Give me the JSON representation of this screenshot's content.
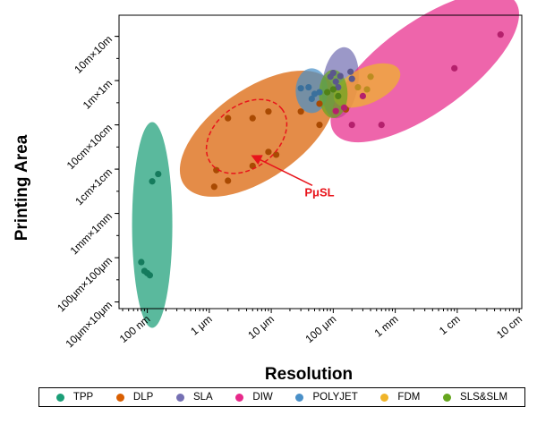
{
  "chart_data": {
    "type": "scatter",
    "title": "",
    "xlabel": "Resolution",
    "ylabel": "Printing Area",
    "x_scale": "log",
    "y_scale": "log",
    "x_unit": "m",
    "y_unit": "m^2",
    "xlim": [
      3.5e-08,
      0.11
    ],
    "ylim": [
      5e-11,
      900
    ],
    "x_ticks": [
      {
        "value": 1e-07,
        "label": "100 nm"
      },
      {
        "value": 1e-06,
        "label": "1 μm"
      },
      {
        "value": 1e-05,
        "label": "10 μm"
      },
      {
        "value": 0.0001,
        "label": "100 μm"
      },
      {
        "value": 0.001,
        "label": "1 mm"
      },
      {
        "value": 0.01,
        "label": "1 cm"
      },
      {
        "value": 0.1,
        "label": "10 cm"
      }
    ],
    "y_ticks": [
      {
        "value": 1e-10,
        "label": "10μm×10μm"
      },
      {
        "value": 1e-08,
        "label": "100μm×100μm"
      },
      {
        "value": 1e-06,
        "label": "1mm×1mm"
      },
      {
        "value": 0.0001,
        "label": "1cm×1cm"
      },
      {
        "value": 0.01,
        "label": "10cm×10cm"
      },
      {
        "value": 1,
        "label": "1m×1m"
      },
      {
        "value": 100,
        "label": "10m×10m"
      }
    ],
    "grid": false,
    "legend_position": "bottom",
    "series": [
      {
        "name": "TPP",
        "color": "#1b9e77",
        "points": [
          [
            8e-08,
            6.3e-09
          ],
          [
            9e-08,
            2.5e-09
          ],
          [
            1e-07,
            2e-09
          ],
          [
            1.1e-07,
            1.6e-09
          ],
          [
            1.2e-07,
            2.8e-05
          ],
          [
            1.5e-07,
            6e-05
          ]
        ],
        "region": {
          "cx": 1.2e-07,
          "cy": 3e-07,
          "w": 45,
          "h": 230,
          "rot": 0
        }
      },
      {
        "name": "DLP",
        "color": "#d95f02",
        "points": [
          [
            1.2e-06,
            1.6e-05
          ],
          [
            1.3e-06,
            9e-05
          ],
          [
            2e-06,
            3e-05
          ],
          [
            2e-06,
            0.02
          ],
          [
            5e-06,
            0.02
          ],
          [
            5e-06,
            0.00014
          ],
          [
            9e-06,
            0.04
          ],
          [
            9e-06,
            0.0006
          ],
          [
            1.2e-05,
            0.00045
          ],
          [
            3e-05,
            0.04
          ],
          [
            6e-05,
            0.09
          ],
          [
            6e-05,
            0.01
          ],
          [
            0.00016,
            0.05
          ]
        ],
        "region": {
          "cx": 6e-06,
          "cy": 0.004,
          "w": 200,
          "h": 100,
          "rot": -35
        }
      },
      {
        "name": "SLA",
        "color": "#7570b3",
        "points": [
          [
            9e-05,
            1.5
          ],
          [
            0.0001,
            2.2
          ],
          [
            0.00011,
            0.9
          ],
          [
            0.00013,
            1.6
          ],
          [
            0.00019,
            2.5
          ],
          [
            0.0002,
            1.2
          ],
          [
            0.00012,
            0.5
          ]
        ],
        "region": {
          "cx": 0.00013,
          "cy": 0.8,
          "w": 40,
          "h": 80,
          "rot": 8
        }
      },
      {
        "name": "DIW",
        "color": "#e7298a",
        "points": [
          [
            0.00011,
            0.042
          ],
          [
            0.0002,
            0.01
          ],
          [
            0.0003,
            0.2
          ],
          [
            0.0006,
            0.01
          ],
          [
            0.009,
            3.6
          ],
          [
            0.05,
            120
          ],
          [
            0.00015,
            0.06
          ]
        ],
        "region": {
          "cx": 0.003,
          "cy": 4,
          "w": 250,
          "h": 100,
          "rot": -36
        }
      },
      {
        "name": "POLYJET",
        "color": "#4a90c8",
        "points": [
          [
            3e-05,
            0.45
          ],
          [
            4e-05,
            0.5
          ],
          [
            5e-05,
            0.25
          ],
          [
            4.5e-05,
            0.15
          ],
          [
            6e-05,
            0.3
          ]
        ],
        "region": {
          "cx": 4.5e-05,
          "cy": 0.35,
          "w": 36,
          "h": 50,
          "rot": 0
        }
      },
      {
        "name": "FDM",
        "color": "#f0b429",
        "points": [
          [
            0.0004,
            1.5
          ],
          [
            0.00035,
            0.4
          ],
          [
            0.00025,
            0.5
          ]
        ],
        "region": {
          "cx": 0.00035,
          "cy": 0.6,
          "w": 80,
          "h": 40,
          "rot": -25
        }
      },
      {
        "name": "SLS&SLM",
        "color": "#66a61e",
        "points": [
          [
            8e-05,
            0.3
          ],
          [
            0.0001,
            0.4
          ],
          [
            0.00012,
            0.2
          ]
        ],
        "region": {
          "cx": 0.0001,
          "cy": 0.25,
          "w": 32,
          "h": 54,
          "rot": 0
        }
      }
    ],
    "annotations": [
      {
        "text": "PμSL",
        "color": "#e8141b",
        "target": {
          "x": 4.5e-06,
          "y": 0.0005
        },
        "label_at": {
          "x": 6e-05,
          "y": 6e-06
        }
      }
    ],
    "pmusl_region": {
      "cx": 4e-06,
      "cy": 0.003,
      "w": 100,
      "h": 70,
      "rot": -38
    }
  }
}
